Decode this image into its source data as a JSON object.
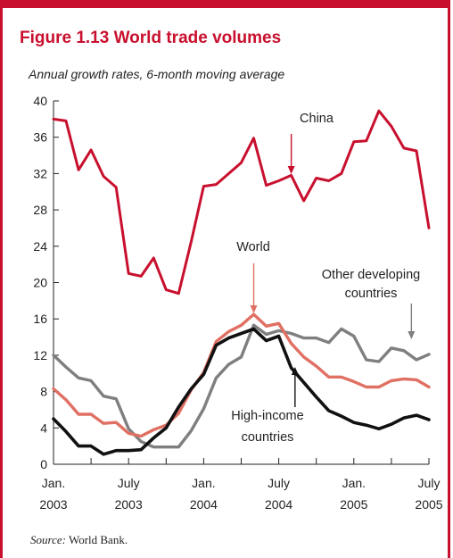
{
  "frame": {
    "accent": "#c8102e"
  },
  "figure": {
    "title": "Figure 1.13  World trade volumes",
    "subtitle": "Annual growth rates, 6-month moving average",
    "source_label": "Source:",
    "source_text": " World Bank."
  },
  "chart_data": {
    "type": "line",
    "title": "World trade volumes",
    "subtitle": "Annual growth rates, 6-month moving average",
    "xlabel": "",
    "ylabel": "",
    "ylim": [
      0,
      40
    ],
    "yticks": [
      "0",
      "4",
      "8",
      "12",
      "16",
      "20",
      "24",
      "28",
      "32",
      "36",
      "40"
    ],
    "xticks": [
      {
        "line1": "Jan.",
        "line2": "2003",
        "month": 0
      },
      {
        "line1": "July",
        "line2": "2003",
        "month": 6
      },
      {
        "line1": "Jan.",
        "line2": "2004",
        "month": 12
      },
      {
        "line1": "July",
        "line2": "2004",
        "month": 18
      },
      {
        "line1": "Jan.",
        "line2": "2005",
        "month": 24
      },
      {
        "line1": "July",
        "line2": "2005",
        "month": 30
      }
    ],
    "grid": false,
    "legend": "none",
    "series": [
      {
        "name": "China",
        "color": "#c8102e",
        "label": [
          "China"
        ],
        "values": [
          38,
          37.8,
          32.4,
          34.6,
          31.7,
          30.5,
          21,
          20.7,
          22.7,
          19.2,
          18.8,
          24.5,
          30.6,
          30.8,
          32,
          33.2,
          35.9,
          30.7,
          31.2,
          31.8,
          29,
          31.5,
          31.2,
          32,
          35.5,
          35.6,
          38.9,
          37.2,
          34.8,
          34.5,
          26
        ]
      },
      {
        "name": "World",
        "color": "#e07063",
        "label": [
          "World"
        ],
        "values": [
          8.3,
          7.1,
          5.5,
          5.5,
          4.5,
          4.6,
          3.4,
          3.1,
          3.8,
          4.3,
          5.6,
          8.2,
          10.1,
          13.5,
          14.6,
          15.3,
          16.5,
          15.2,
          15.5,
          13.3,
          11.8,
          10.8,
          9.6,
          9.6,
          9.1,
          8.5,
          8.5,
          9.2,
          9.4,
          9.3,
          8.5
        ]
      },
      {
        "name": "Other developing countries",
        "color": "#7f7f7f",
        "label": [
          "Other developing",
          "countries"
        ],
        "values": [
          12,
          10.7,
          9.5,
          9.2,
          7.5,
          7.2,
          3.9,
          2.5,
          1.9,
          1.9,
          1.9,
          3.7,
          6.1,
          9.5,
          11,
          11.8,
          15.3,
          14.3,
          14.7,
          14.4,
          13.9,
          13.9,
          13.4,
          14.9,
          14.1,
          11.5,
          11.3,
          12.8,
          12.5,
          11.5,
          12.1
        ]
      },
      {
        "name": "High-income countries",
        "color": "#111111",
        "label": [
          "High-income",
          "countries"
        ],
        "values": [
          5,
          3.6,
          2,
          2,
          1.1,
          1.5,
          1.5,
          1.6,
          2.9,
          4,
          6.3,
          8.3,
          9.9,
          13.1,
          13.9,
          14.4,
          14.9,
          13.6,
          14.1,
          10.6,
          9,
          7.4,
          5.9,
          5.3,
          4.6,
          4.3,
          3.9,
          4.4,
          5.1,
          5.4,
          4.9
        ]
      }
    ]
  }
}
